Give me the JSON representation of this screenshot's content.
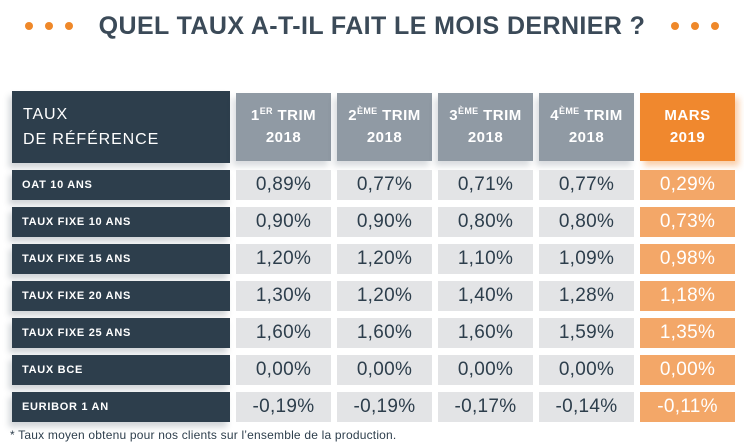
{
  "title": {
    "text": "QUEL TAUX A-T-IL FAIT LE MOIS DERNIER ?"
  },
  "colors": {
    "accent_orange": "#ef8829",
    "orange_cell": "#f3a768",
    "dark_slate": "#2d3e4c",
    "gray_header": "#909aa4",
    "gray_cell": "#e3e4e6"
  },
  "table": {
    "corner": {
      "line1": "TAUX",
      "line2": "DE RÉFÉRENCE"
    },
    "columns": [
      {
        "prefix": "1",
        "sup": "ER",
        "word": " TRIM",
        "year": "2018"
      },
      {
        "prefix": "2",
        "sup": "ÈME",
        "word": " TRIM",
        "year": "2018"
      },
      {
        "prefix": "3",
        "sup": "ÈME",
        "word": " TRIM",
        "year": "2018"
      },
      {
        "prefix": "4",
        "sup": "ÈME",
        "word": " TRIM",
        "year": "2018"
      },
      {
        "prefix": "MARS",
        "sup": "",
        "word": "",
        "year": "2019"
      }
    ],
    "rows": [
      {
        "label": "OAT 10 ANS",
        "values": [
          "0,89%",
          "0,77%",
          "0,71%",
          "0,77%",
          "0,29%"
        ]
      },
      {
        "label": "TAUX FIXE 10 ANS",
        "values": [
          "0,90%",
          "0,90%",
          "0,80%",
          "0,80%",
          "0,73%"
        ]
      },
      {
        "label": "TAUX FIXE 15 ANS",
        "values": [
          "1,20%",
          "1,20%",
          "1,10%",
          "1,09%",
          "0,98%"
        ]
      },
      {
        "label": "TAUX FIXE 20 ANS",
        "values": [
          "1,30%",
          "1,20%",
          "1,40%",
          "1,28%",
          "1,18%"
        ]
      },
      {
        "label": "TAUX FIXE 25 ANS",
        "values": [
          "1,60%",
          "1,60%",
          "1,60%",
          "1,59%",
          "1,35%"
        ]
      },
      {
        "label": "TAUX BCE",
        "values": [
          "0,00%",
          "0,00%",
          "0,00%",
          "0,00%",
          "0,00%"
        ]
      },
      {
        "label": "EURIBOR 1 AN",
        "values": [
          "-0,19%",
          "-0,19%",
          "-0,17%",
          "-0,14%",
          "-0,11%"
        ]
      }
    ]
  },
  "footnote": "* Taux moyen obtenu pour nos clients sur l’ensemble de la production.",
  "chart_data": {
    "type": "table",
    "title": "QUEL TAUX A-T-IL FAIT LE MOIS DERNIER ?",
    "columns": [
      "TAUX DE RÉFÉRENCE",
      "1er Trim 2018",
      "2ème Trim 2018",
      "3ème Trim 2018",
      "4ème Trim 2018",
      "Mars 2019"
    ],
    "rows": [
      [
        "OAT 10 ANS",
        "0,89%",
        "0,77%",
        "0,71%",
        "0,77%",
        "0,29%"
      ],
      [
        "TAUX FIXE 10 ANS",
        "0,90%",
        "0,90%",
        "0,80%",
        "0,80%",
        "0,73%"
      ],
      [
        "TAUX FIXE 15 ANS",
        "1,20%",
        "1,20%",
        "1,10%",
        "1,09%",
        "0,98%"
      ],
      [
        "TAUX FIXE 20 ANS",
        "1,30%",
        "1,20%",
        "1,40%",
        "1,28%",
        "1,18%"
      ],
      [
        "TAUX FIXE 25 ANS",
        "1,60%",
        "1,60%",
        "1,60%",
        "1,59%",
        "1,35%"
      ],
      [
        "TAUX BCE",
        "0,00%",
        "0,00%",
        "0,00%",
        "0,00%",
        "0,00%"
      ],
      [
        "EURIBOR 1 AN",
        "-0,19%",
        "-0,19%",
        "-0,17%",
        "-0,14%",
        "-0,11%"
      ]
    ],
    "highlight_column": "Mars 2019",
    "footnote": "* Taux moyen obtenu pour nos clients sur l’ensemble de la production."
  }
}
